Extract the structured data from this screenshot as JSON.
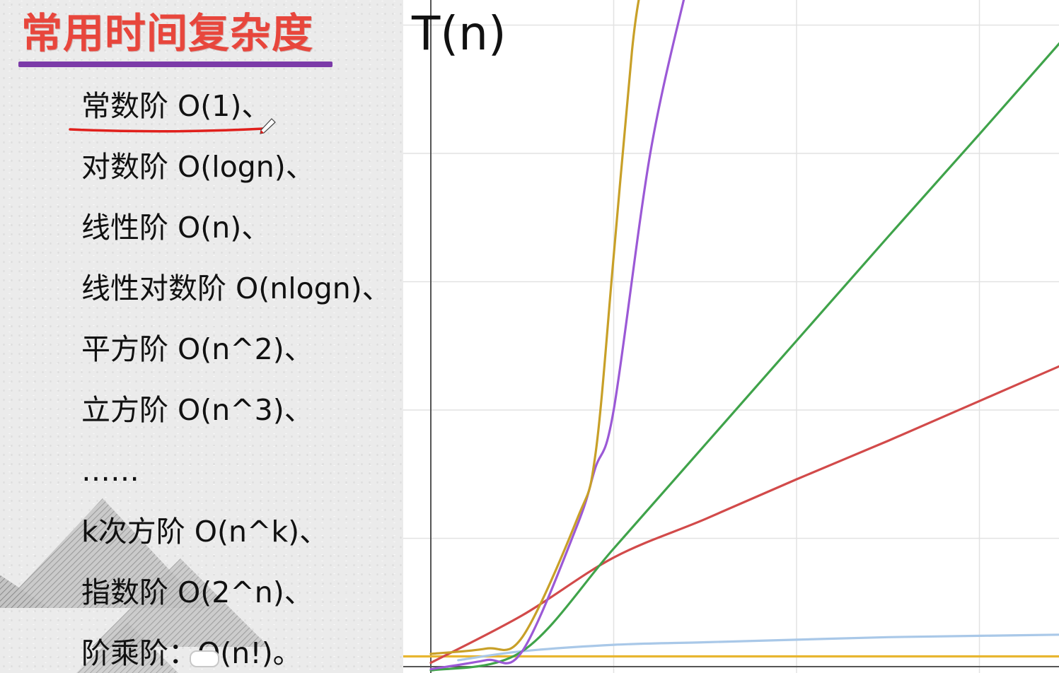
{
  "slide": {
    "title": "常用时间复杂度",
    "items": [
      "常数阶 O(1)、",
      "对数阶 O(logn)、",
      "线性阶 O(n)、",
      "线性对数阶 O(nlogn)、",
      "平方阶 O(n^2)、",
      "立方阶 O(n^3)、",
      "……",
      "k次方阶 O(n^k)、",
      "指数阶 O(2^n)、",
      "阶乘阶：O(n!)。"
    ]
  },
  "colors": {
    "title": "#e8463c",
    "title_underline": "#7b3aa8",
    "annotation_underline": "#e0201c",
    "grid": "#e2e2e2",
    "axis": "#555555"
  },
  "chart_data": {
    "type": "line",
    "title": "",
    "xlabel": "",
    "ylabel": "T(n)",
    "grid": true,
    "xlim": [
      -0.1,
      3.5
    ],
    "ylim": [
      -0.05,
      5.2
    ],
    "series": [
      {
        "color": "#e8b630",
        "x": [
          -0.15,
          3.6
        ],
        "y": [
          0.08,
          0.08
        ]
      },
      {
        "color": "#a9c8e8",
        "x": [
          0.15,
          0.5,
          1,
          1.5,
          2,
          2.5,
          3,
          3.5
        ],
        "y": [
          0.05,
          0.12,
          0.17,
          0.19,
          0.21,
          0.23,
          0.24,
          0.25
        ]
      },
      {
        "color": "#d24a4a",
        "x": [
          0,
          0.5,
          1,
          1.5,
          2,
          2.5,
          3,
          3.5
        ],
        "y": [
          0.03,
          0.4,
          0.85,
          1.15,
          1.46,
          1.76,
          2.07,
          2.38
        ]
      },
      {
        "color": "#3fa34a",
        "x": [
          0,
          0.5,
          1,
          1.5,
          2,
          2.5,
          3,
          3.5
        ],
        "y": [
          -0.03,
          0.12,
          0.92,
          1.73,
          2.54,
          3.35,
          4.15,
          4.96
        ]
      },
      {
        "color": "#9b59d6",
        "x": [
          0,
          0.3,
          0.5,
          0.8,
          0.9,
          1,
          1.2,
          1.4
        ],
        "y": [
          -0.02,
          0.05,
          0.12,
          1.1,
          1.55,
          2.0,
          4.0,
          5.3
        ]
      },
      {
        "color": "#c8a028",
        "x": [
          0,
          0.3,
          0.5,
          0.8,
          0.9,
          1,
          1.1,
          1.15
        ],
        "y": [
          0.1,
          0.14,
          0.23,
          1.15,
          1.65,
          3.2,
          4.8,
          5.3
        ]
      }
    ]
  }
}
